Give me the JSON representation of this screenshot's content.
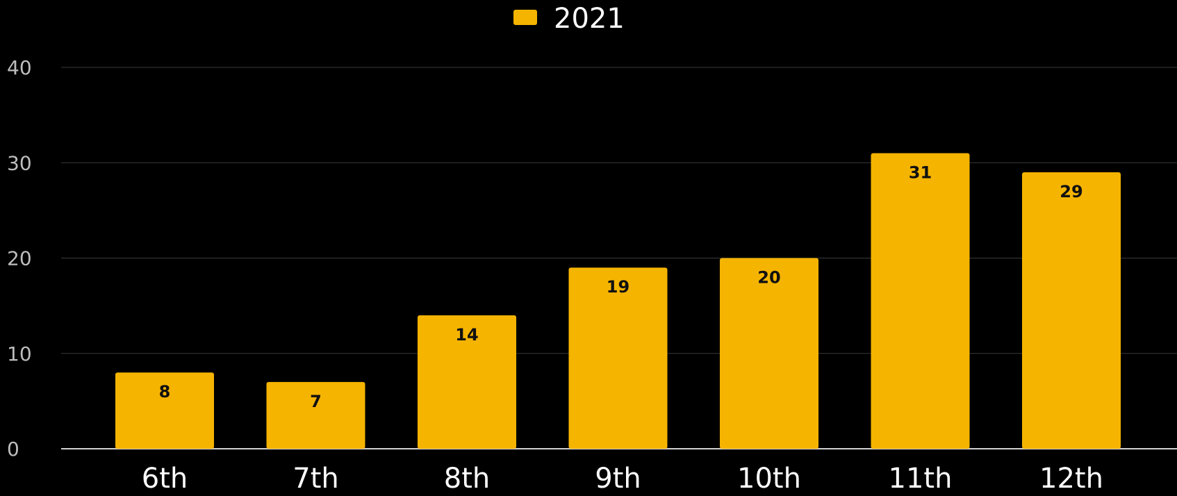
{
  "chart_data": {
    "type": "bar",
    "categories": [
      "6th",
      "7th",
      "8th",
      "9th",
      "10th",
      "11th",
      "12th"
    ],
    "series": [
      {
        "name": "2021",
        "values": [
          8,
          7,
          14,
          19,
          20,
          31,
          29
        ],
        "color": "#F5B400"
      }
    ],
    "ylim": [
      0,
      40
    ],
    "yticks": [
      0,
      10,
      20,
      30,
      40
    ],
    "grid": true,
    "legend_position": "top-center",
    "data_labels": true,
    "colors": {
      "background": "#000000",
      "bar": "#F5B400",
      "text": "#FFFFFF",
      "tick_text": "#BDBDBD",
      "grid": "#3A3A3A"
    }
  }
}
